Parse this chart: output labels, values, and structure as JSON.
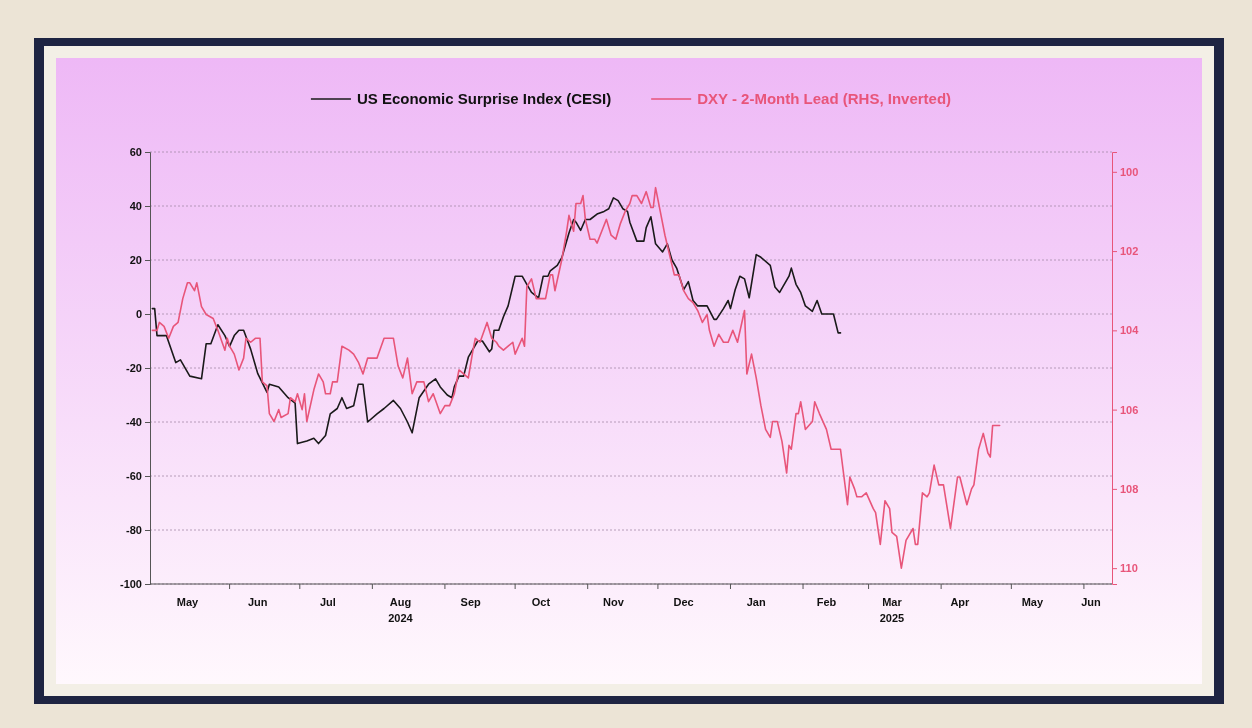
{
  "chart_data": {
    "type": "line",
    "legend": "top",
    "grid": "y",
    "ylim": [
      -100,
      60
    ],
    "yticks": [
      -100,
      -80,
      -60,
      -40,
      -20,
      0,
      20,
      40,
      60
    ],
    "y2lim": [
      110.4,
      99.5
    ],
    "y2ticks": [
      100,
      102,
      104,
      106,
      108,
      110
    ],
    "xlim": [
      "2024-04-28",
      "2025-06-13"
    ],
    "xticks": [
      {
        "value": "2024-05-14",
        "label": "May"
      },
      {
        "value": "2024-06-01",
        "label": null
      },
      {
        "value": "2024-06-13",
        "label": "Jun"
      },
      {
        "value": "2024-07-01",
        "label": null
      },
      {
        "value": "2024-07-13",
        "label": "Jul"
      },
      {
        "value": "2024-08-01",
        "label": null
      },
      {
        "value": "2024-08-13",
        "label": "Aug\n2024"
      },
      {
        "value": "2024-09-01",
        "label": null
      },
      {
        "value": "2024-09-12",
        "label": "Sep"
      },
      {
        "value": "2024-10-01",
        "label": null
      },
      {
        "value": "2024-10-12",
        "label": "Oct"
      },
      {
        "value": "2024-11-01",
        "label": null
      },
      {
        "value": "2024-11-12",
        "label": "Nov"
      },
      {
        "value": "2024-12-01",
        "label": null
      },
      {
        "value": "2024-12-12",
        "label": "Dec"
      },
      {
        "value": "2025-01-01",
        "label": null
      },
      {
        "value": "2025-01-12",
        "label": "Jan"
      },
      {
        "value": "2025-02-01",
        "label": null
      },
      {
        "value": "2025-02-11",
        "label": "Feb"
      },
      {
        "value": "2025-03-01",
        "label": null
      },
      {
        "value": "2025-03-11",
        "label": "Mar\n2025"
      },
      {
        "value": "2025-04-01",
        "label": null
      },
      {
        "value": "2025-04-09",
        "label": "Apr"
      },
      {
        "value": "2025-05-01",
        "label": null
      },
      {
        "value": "2025-05-10",
        "label": "May"
      },
      {
        "value": "2025-06-01",
        "label": null
      },
      {
        "value": "2025-06-04",
        "label": "Jun"
      }
    ],
    "series": [
      {
        "name": "US Economic Surprise Index (CESI)",
        "color": "#1a1a1a",
        "x": [
          "2024-04-29",
          "2024-04-30",
          "2024-05-01",
          "2024-05-05",
          "2024-05-09",
          "2024-05-11",
          "2024-05-15",
          "2024-05-20",
          "2024-05-22",
          "2024-05-24",
          "2024-05-27",
          "2024-05-30",
          "2024-06-01",
          "2024-06-03",
          "2024-06-05",
          "2024-06-07",
          "2024-06-10",
          "2024-06-13",
          "2024-06-17",
          "2024-06-18",
          "2024-06-22",
          "2024-06-26",
          "2024-06-29",
          "2024-06-30",
          "2024-07-04",
          "2024-07-07",
          "2024-07-09",
          "2024-07-12",
          "2024-07-14",
          "2024-07-17",
          "2024-07-19",
          "2024-07-21",
          "2024-07-24",
          "2024-07-26",
          "2024-07-28",
          "2024-07-30",
          "2024-08-03",
          "2024-08-06",
          "2024-08-10",
          "2024-08-13",
          "2024-08-16",
          "2024-08-18",
          "2024-08-21",
          "2024-08-25",
          "2024-08-28",
          "2024-08-30",
          "2024-09-02",
          "2024-09-04",
          "2024-09-05",
          "2024-09-07",
          "2024-09-09",
          "2024-09-11",
          "2024-09-13",
          "2024-09-15",
          "2024-09-17",
          "2024-09-20",
          "2024-09-21",
          "2024-09-22",
          "2024-09-24",
          "2024-09-26",
          "2024-09-28",
          "2024-10-01",
          "2024-10-04",
          "2024-10-06",
          "2024-10-08",
          "2024-10-11",
          "2024-10-13",
          "2024-10-15",
          "2024-10-16",
          "2024-10-19",
          "2024-10-21",
          "2024-10-24",
          "2024-10-26",
          "2024-10-27",
          "2024-10-29",
          "2024-10-31",
          "2024-11-02",
          "2024-11-05",
          "2024-11-08",
          "2024-11-10",
          "2024-11-12",
          "2024-11-14",
          "2024-11-16",
          "2024-11-18",
          "2024-11-19",
          "2024-11-22",
          "2024-11-25",
          "2024-11-26",
          "2024-11-28",
          "2024-11-30",
          "2024-12-02",
          "2024-12-03",
          "2024-12-05",
          "2024-12-07",
          "2024-12-09",
          "2024-12-12",
          "2024-12-14",
          "2024-12-16",
          "2024-12-18",
          "2024-12-22",
          "2024-12-25",
          "2024-12-26",
          "2024-12-29",
          "2024-12-31",
          "2025-01-01",
          "2025-01-03",
          "2025-01-05",
          "2025-01-07",
          "2025-01-09",
          "2025-01-12",
          "2025-01-14",
          "2025-01-18",
          "2025-01-20",
          "2025-01-22",
          "2025-01-26",
          "2025-01-27",
          "2025-01-29",
          "2025-01-31",
          "2025-02-02",
          "2025-02-05",
          "2025-02-07",
          "2025-02-09",
          "2025-02-12",
          "2025-02-14",
          "2025-02-16",
          "2025-02-17"
        ],
        "values": [
          2,
          2,
          -8,
          -8,
          -18,
          -17,
          -23,
          -24,
          -11,
          -11,
          -4,
          -8,
          -12,
          -8,
          -6,
          -6,
          -13,
          -22,
          -29,
          -26,
          -27,
          -31,
          -33,
          -48,
          -47,
          -46,
          -48,
          -45,
          -37,
          -35,
          -31,
          -35,
          -34,
          -26,
          -26,
          -40,
          -37,
          -35,
          -32,
          -35,
          -40,
          -44,
          -31,
          -26,
          -24,
          -27,
          -30,
          -31,
          -27,
          -23,
          -23,
          -16,
          -13,
          -10,
          -10,
          -14,
          -13,
          -6,
          -6,
          -1,
          3,
          14,
          14,
          11,
          8,
          6,
          14,
          14,
          16,
          18,
          21,
          30,
          35,
          34,
          31,
          35,
          35,
          37,
          38,
          39,
          43,
          42,
          39,
          38,
          34,
          27,
          27,
          32,
          36,
          26,
          24,
          23,
          26,
          20,
          17,
          9,
          12,
          5,
          3,
          3,
          -2,
          -2,
          2,
          5,
          2,
          9,
          14,
          13,
          6,
          22,
          21,
          18,
          10,
          8,
          14,
          17,
          11,
          8,
          3,
          1,
          5,
          0,
          0,
          0,
          -7,
          -7
        ]
      },
      {
        "name": "DXY - 2-Month Lead (RHS, Inverted)",
        "color": "#e8557a",
        "axis": "y2",
        "x": [
          "2024-04-29",
          "2024-05-01",
          "2024-05-02",
          "2024-05-04",
          "2024-05-06",
          "2024-05-08",
          "2024-05-10",
          "2024-05-12",
          "2024-05-14",
          "2024-05-15",
          "2024-05-17",
          "2024-05-18",
          "2024-05-20",
          "2024-05-22",
          "2024-05-25",
          "2024-05-27",
          "2024-05-30",
          "2024-05-31",
          "2024-06-01",
          "2024-06-03",
          "2024-06-05",
          "2024-06-07",
          "2024-06-08",
          "2024-06-10",
          "2024-06-12",
          "2024-06-14",
          "2024-06-15",
          "2024-06-17",
          "2024-06-18",
          "2024-06-20",
          "2024-06-22",
          "2024-06-23",
          "2024-06-26",
          "2024-06-27",
          "2024-06-29",
          "2024-06-30",
          "2024-07-02",
          "2024-07-03",
          "2024-07-04",
          "2024-07-07",
          "2024-07-09",
          "2024-07-11",
          "2024-07-12",
          "2024-07-14",
          "2024-07-15",
          "2024-07-17",
          "2024-07-19",
          "2024-07-22",
          "2024-07-24",
          "2024-07-26",
          "2024-07-28",
          "2024-07-30",
          "2024-08-02",
          "2024-08-03",
          "2024-08-06",
          "2024-08-08",
          "2024-08-10",
          "2024-08-12",
          "2024-08-14",
          "2024-08-16",
          "2024-08-18",
          "2024-08-20",
          "2024-08-23",
          "2024-08-25",
          "2024-08-27",
          "2024-08-30",
          "2024-09-01",
          "2024-09-03",
          "2024-09-05",
          "2024-09-07",
          "2024-09-09",
          "2024-09-11",
          "2024-09-13",
          "2024-09-14",
          "2024-09-16",
          "2024-09-19",
          "2024-09-21",
          "2024-09-23",
          "2024-09-24",
          "2024-09-26",
          "2024-09-28",
          "2024-09-30",
          "2024-10-01",
          "2024-10-04",
          "2024-10-05",
          "2024-10-06",
          "2024-10-08",
          "2024-10-10",
          "2024-10-12",
          "2024-10-14",
          "2024-10-16",
          "2024-10-17",
          "2024-10-18",
          "2024-10-21",
          "2024-10-23",
          "2024-10-24",
          "2024-10-26",
          "2024-10-27",
          "2024-10-29",
          "2024-10-30",
          "2024-10-31",
          "2024-11-02",
          "2024-11-04",
          "2024-11-05",
          "2024-11-07",
          "2024-11-09",
          "2024-11-11",
          "2024-11-13",
          "2024-11-15",
          "2024-11-17",
          "2024-11-19",
          "2024-11-20",
          "2024-11-22",
          "2024-11-24",
          "2024-11-26",
          "2024-11-28",
          "2024-11-29",
          "2024-11-30",
          "2024-12-02",
          "2024-12-04",
          "2024-12-06",
          "2024-12-08",
          "2024-12-10",
          "2024-12-12",
          "2024-12-14",
          "2024-12-16",
          "2024-12-18",
          "2024-12-20",
          "2024-12-22",
          "2024-12-23",
          "2024-12-25",
          "2024-12-27",
          "2024-12-29",
          "2024-12-31",
          "2025-01-02",
          "2025-01-04",
          "2025-01-07",
          "2025-01-08",
          "2025-01-10",
          "2025-01-12",
          "2025-01-14",
          "2025-01-16",
          "2025-01-18",
          "2025-01-19",
          "2025-01-21",
          "2025-01-23",
          "2025-01-25",
          "2025-01-26",
          "2025-01-27",
          "2025-01-29",
          "2025-01-30",
          "2025-01-31",
          "2025-02-02",
          "2025-02-05",
          "2025-02-06",
          "2025-02-08",
          "2025-02-11",
          "2025-02-13",
          "2025-02-15",
          "2025-02-17",
          "2025-02-20",
          "2025-02-21",
          "2025-02-23",
          "2025-02-24",
          "2025-02-26",
          "2025-02-28",
          "2025-03-03",
          "2025-03-04",
          "2025-03-06",
          "2025-03-08",
          "2025-03-10",
          "2025-03-11",
          "2025-03-13",
          "2025-03-15",
          "2025-03-17",
          "2025-03-20",
          "2025-03-21",
          "2025-03-22",
          "2025-03-24",
          "2025-03-26",
          "2025-03-27",
          "2025-03-29",
          "2025-03-31",
          "2025-04-02",
          "2025-04-05",
          "2025-04-08",
          "2025-04-09",
          "2025-04-12",
          "2025-04-14",
          "2025-04-15",
          "2025-04-17",
          "2025-04-19",
          "2025-04-21",
          "2025-04-22",
          "2025-04-23",
          "2025-04-26"
        ],
        "values": [
          104.0,
          104.0,
          103.8,
          103.9,
          104.2,
          103.9,
          103.8,
          103.2,
          102.8,
          102.8,
          103.0,
          102.8,
          103.4,
          103.6,
          103.7,
          104.0,
          104.5,
          104.2,
          104.4,
          104.6,
          105.0,
          104.7,
          104.2,
          104.3,
          104.2,
          104.2,
          105.3,
          105.4,
          106.1,
          106.3,
          106.0,
          106.2,
          106.1,
          105.7,
          105.8,
          105.6,
          106.0,
          105.6,
          106.3,
          105.5,
          105.1,
          105.3,
          105.6,
          105.6,
          105.3,
          105.3,
          104.4,
          104.5,
          104.6,
          104.8,
          105.1,
          104.7,
          104.7,
          104.7,
          104.2,
          104.2,
          104.2,
          104.9,
          105.2,
          104.7,
          105.6,
          105.3,
          105.3,
          105.8,
          105.6,
          106.1,
          105.9,
          105.9,
          105.6,
          105.0,
          105.1,
          105.2,
          104.5,
          104.2,
          104.3,
          103.8,
          104.2,
          104.3,
          104.4,
          104.5,
          104.4,
          104.3,
          104.6,
          104.2,
          104.4,
          102.9,
          102.7,
          103.2,
          103.2,
          103.2,
          102.6,
          102.6,
          103.0,
          102.2,
          101.5,
          101.1,
          101.5,
          100.8,
          100.8,
          100.6,
          101.2,
          101.7,
          101.7,
          101.8,
          101.5,
          101.2,
          101.6,
          101.7,
          101.3,
          101.0,
          100.8,
          100.6,
          100.6,
          100.8,
          100.5,
          100.9,
          100.9,
          100.4,
          101.0,
          101.6,
          102.1,
          102.6,
          102.6,
          103.0,
          103.2,
          103.3,
          103.5,
          103.8,
          103.6,
          104.0,
          104.4,
          104.1,
          104.3,
          104.3,
          104.0,
          104.3,
          103.5,
          105.1,
          104.6,
          105.2,
          105.9,
          106.5,
          106.7,
          106.3,
          106.3,
          106.8,
          107.6,
          106.9,
          107.0,
          106.1,
          106.1,
          105.8,
          106.5,
          106.3,
          105.8,
          106.1,
          106.5,
          107.0,
          107.0,
          107.0,
          108.4,
          107.7,
          108.0,
          108.2,
          108.2,
          108.1,
          108.5,
          108.6,
          109.4,
          108.3,
          108.5,
          109.1,
          109.2,
          110.0,
          109.3,
          109.0,
          109.4,
          109.4,
          108.1,
          108.2,
          108.1,
          107.4,
          107.9,
          107.9,
          109.0,
          107.7,
          107.7,
          108.4,
          108.0,
          107.9,
          107.0,
          106.6,
          107.1,
          107.2,
          106.4,
          106.4
        ]
      }
    ]
  }
}
